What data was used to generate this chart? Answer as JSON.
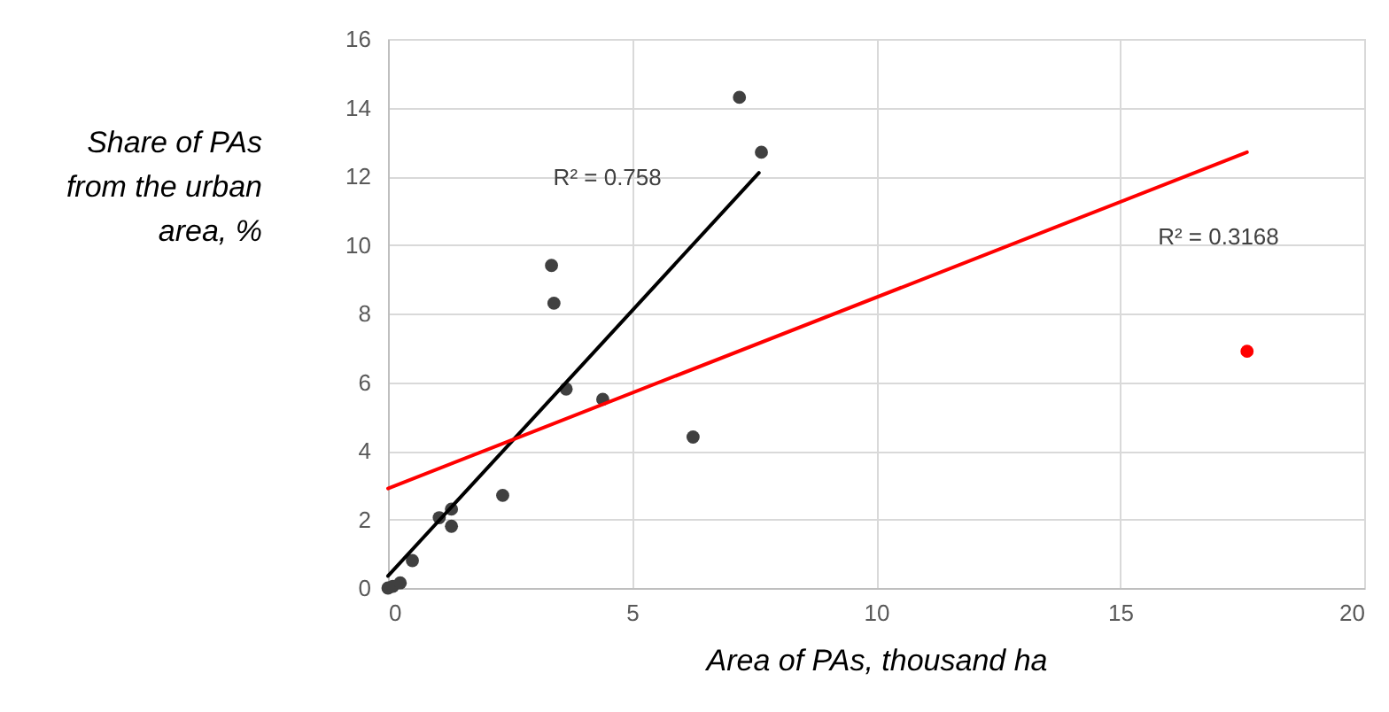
{
  "chart_data": {
    "type": "scatter",
    "xlabel": "Area of PAs, thousand ha",
    "ylabel": "Share of PAs from the urban area, %",
    "xlim": [
      0,
      20
    ],
    "xticks": [
      0,
      5,
      10,
      15,
      20
    ],
    "ylim": [
      0,
      16
    ],
    "yticks": [
      0,
      2,
      4,
      6,
      8,
      10,
      12,
      14,
      16
    ],
    "grid": true,
    "series": [
      {
        "color": "#404040",
        "marker": "circle",
        "x": [
          0,
          0.1,
          0.25,
          0.5,
          1.05,
          1.3,
          1.3,
          2.35,
          3.35,
          3.4,
          3.65,
          4.4,
          6.25,
          7.2,
          7.65
        ],
        "values": [
          0,
          0.05,
          0.15,
          0.8,
          2.05,
          2.3,
          1.8,
          2.7,
          9.4,
          8.3,
          5.8,
          5.5,
          4.4,
          14.3,
          12.7
        ]
      },
      {
        "color": "#ff0000",
        "marker": "circle",
        "x": [
          17.6
        ],
        "values": [
          6.9
        ]
      },
      {
        "type": "line",
        "color": "#000000",
        "marker": "none",
        "line_style": "solid",
        "x": [
          0,
          7.6
        ],
        "values": [
          0.35,
          12.1
        ]
      },
      {
        "type": "line",
        "color": "#ff0000",
        "marker": "none",
        "line_style": "solid",
        "x": [
          0,
          17.6
        ],
        "values": [
          2.9,
          12.7
        ]
      }
    ],
    "annotations": [
      "R² = 0.758",
      "R² = 0.3168"
    ]
  }
}
